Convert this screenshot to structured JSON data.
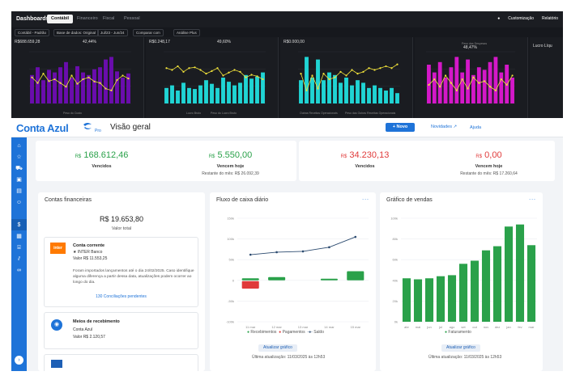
{
  "dark": {
    "title": "Dashboards",
    "tabs": [
      "Contábil",
      "Financeiro",
      "Fiscal",
      "Pessoal"
    ],
    "active_tab": "Contábil",
    "right": [
      "Customização",
      "Relatório"
    ],
    "filters": [
      "Contábil - Padrão",
      "Base de dados: Original",
      "Jul/23 - Jun/24",
      "Comparar com",
      "Análise Plus"
    ],
    "panels": [
      {
        "value": "R$688.659,28",
        "pct": "42,44%",
        "legend": "Peso do Custo",
        "bars": [
          0.55,
          0.7,
          0.45,
          0.65,
          0.6,
          0.7,
          0.8,
          0.5,
          0.72,
          0.6,
          0.55,
          0.66,
          0.7,
          0.85,
          0.9,
          0.62,
          0.5,
          0.58
        ]
      },
      {
        "value": "R$0.248,17",
        "pct": "49,60%",
        "legend": "Lucro Bruto",
        "legend2": "Peso do Lucro Bruto",
        "bars": [
          0.3,
          0.35,
          0.25,
          0.4,
          0.3,
          0.28,
          0.35,
          0.45,
          0.38,
          0.3,
          0.5,
          0.42,
          0.35,
          0.4,
          0.55,
          0.48,
          0.52,
          0.6
        ]
      },
      {
        "value": "R$0.000,00",
        "pct": "",
        "legend": "Outras Receitas Operacionais",
        "legend2": "Peso das Outras Receitas Operacionais",
        "bars": [
          0.45,
          0.9,
          0.5,
          0.85,
          0.45,
          0.6,
          0.55,
          0.4,
          0.5,
          0.35,
          0.45,
          0.4,
          0.3,
          0.35,
          0.3,
          0.25,
          0.3,
          0.2
        ]
      },
      {
        "value": "",
        "pct": "48,47%",
        "legend": "Peso das Despesas",
        "bars": [
          0.75,
          0.6,
          0.8,
          0.5,
          0.7,
          0.9,
          0.6,
          0.85,
          0.55,
          0.7,
          0.65,
          0.8,
          0.9,
          0.6,
          0.75,
          0.5
        ]
      },
      {
        "value": "Lucro Líqu",
        "pct": "",
        "legend": "",
        "bars": []
      }
    ]
  },
  "app": {
    "logo": "Conta Azul",
    "logo_sub": "Pro",
    "page_title": "Visão geral",
    "novo_label": "+ Novo",
    "novidades_label": "Novidades",
    "ajuda_label": "Ajuda",
    "kpis": [
      {
        "currency": "R$",
        "value": "168.612,46",
        "label": "Vencidos",
        "sub": "",
        "color": "#2aa14a"
      },
      {
        "currency": "R$",
        "value": "5.550,00",
        "label": "Vencem hoje",
        "sub": "Restante do mês: R$ 26.092,39",
        "color": "#2aa14a"
      },
      {
        "currency": "R$",
        "value": "34.230,13",
        "label": "Vencidos",
        "sub": "",
        "color": "#e03a3a"
      },
      {
        "currency": "R$",
        "value": "0,00",
        "label": "Vencem hoje",
        "sub": "Restante do mês: R$ 17.260,64",
        "color": "#e03a3a"
      }
    ],
    "contas": {
      "title": "Contas financeiras",
      "total_value": "R$ 19.653,80",
      "total_label": "Valor total",
      "account1": {
        "logo_text": "inter",
        "name": "Conta corrente",
        "bank": "★ INTER Banco",
        "balance": "Valor R$ 11.553,25",
        "note": "Foram importados lançamentos até o dia 24/02/2025. Caso identifique alguma diferença a partir dessa data, atualizações podem ocorrer ao longo do dia.",
        "link": "130 Conciliações pendentes"
      },
      "account2": {
        "name": "Meios de recebimento",
        "bank": "Conta Azul",
        "balance": "Valor R$ 2.120,57"
      }
    },
    "fluxo": {
      "title": "Fluxo de caixa diário",
      "more": "...",
      "legend": [
        "Recebimentos",
        "Pagamentos",
        "Saldo"
      ],
      "update_button": "Atualizar gráfico",
      "update_text": "Última atualização: 11/03/2025 às 12h53"
    },
    "vendas": {
      "title": "Gráfico de vendas",
      "more": "...",
      "legend": [
        "Faturamento"
      ],
      "update_button": "Atualizar gráfico",
      "update_text": "Última atualização: 11/03/2025 às 12h53"
    }
  },
  "chart_data": [
    {
      "type": "bar",
      "title": "Fluxo de caixa diário",
      "categories": [
        "11 mar",
        "12 mar",
        "13 mar",
        "14 mar",
        "15 mar"
      ],
      "series": [
        {
          "name": "Recebimentos",
          "values": [
            5000,
            8000,
            0,
            4000,
            22000
          ]
        },
        {
          "name": "Pagamentos",
          "values": [
            -18000,
            0,
            0,
            0,
            0
          ]
        },
        {
          "name": "Saldo",
          "values": [
            62000,
            68000,
            70000,
            80000,
            105000
          ]
        }
      ],
      "yticks": [
        "150k",
        "100k",
        "50k",
        "0",
        "-50k",
        "-100k"
      ],
      "ylim": [
        -100000,
        150000
      ]
    },
    {
      "type": "bar",
      "title": "Gráfico de vendas",
      "categories": [
        "abr",
        "mai",
        "jun",
        "jul",
        "ago",
        "set",
        "out",
        "nov",
        "dez",
        "jan",
        "fev",
        "mar"
      ],
      "series": [
        {
          "name": "Faturamento",
          "values": [
            42000,
            41000,
            42000,
            44000,
            45000,
            56000,
            59000,
            69000,
            73000,
            92000,
            94000,
            74000
          ]
        }
      ],
      "yticks": [
        "100k",
        "80k",
        "60k",
        "40k",
        "20k",
        "0k"
      ],
      "ylim": [
        0,
        100000
      ]
    }
  ],
  "colors": {
    "brand": "#1e73d8",
    "green": "#2aa14a",
    "red": "#e03a3a",
    "purple": "#6a0dad",
    "cyan": "#20d4d4",
    "magenta": "#d418c8",
    "yellow": "#f2e33a"
  }
}
